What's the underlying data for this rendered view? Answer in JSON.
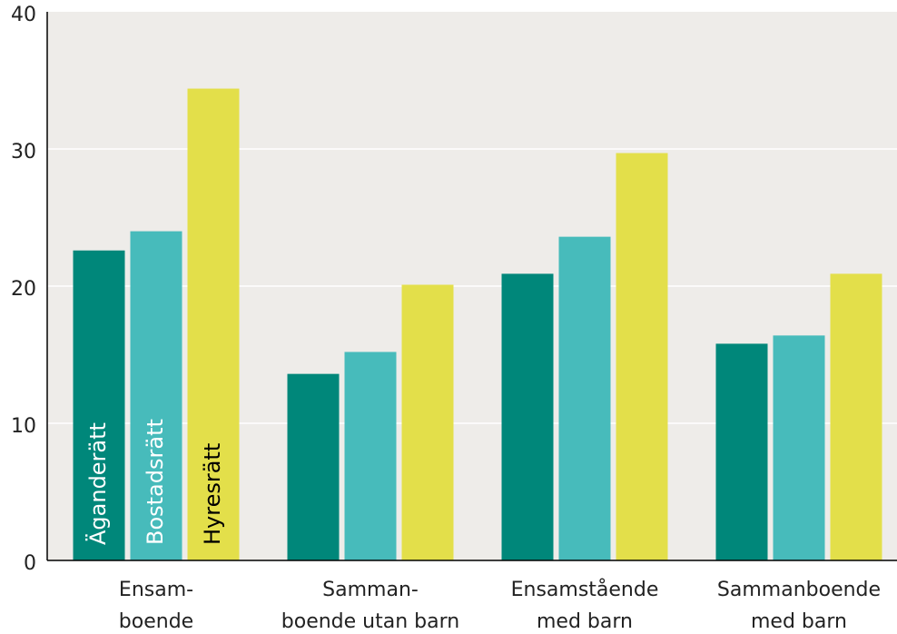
{
  "chart_data": {
    "type": "bar",
    "categories": [
      [
        "Ensam-",
        "boende"
      ],
      [
        "Samman-",
        "boende utan barn"
      ],
      [
        "Ensamstående",
        "med barn"
      ],
      [
        "Sammanboende",
        "med barn"
      ]
    ],
    "series": [
      {
        "name": "Äganderätt",
        "color": "#00877a",
        "values": [
          22.6,
          13.6,
          20.9,
          15.8
        ]
      },
      {
        "name": "Bostadsrätt",
        "color": "#47bbbb",
        "values": [
          24.0,
          15.2,
          23.6,
          16.4
        ]
      },
      {
        "name": "Hyresrätt",
        "color": "#e3df4a",
        "values": [
          34.4,
          20.1,
          29.7,
          20.9
        ]
      }
    ],
    "ylim": [
      0,
      40
    ],
    "yticks": [
      0,
      10,
      20,
      30,
      40
    ],
    "grid": true
  }
}
